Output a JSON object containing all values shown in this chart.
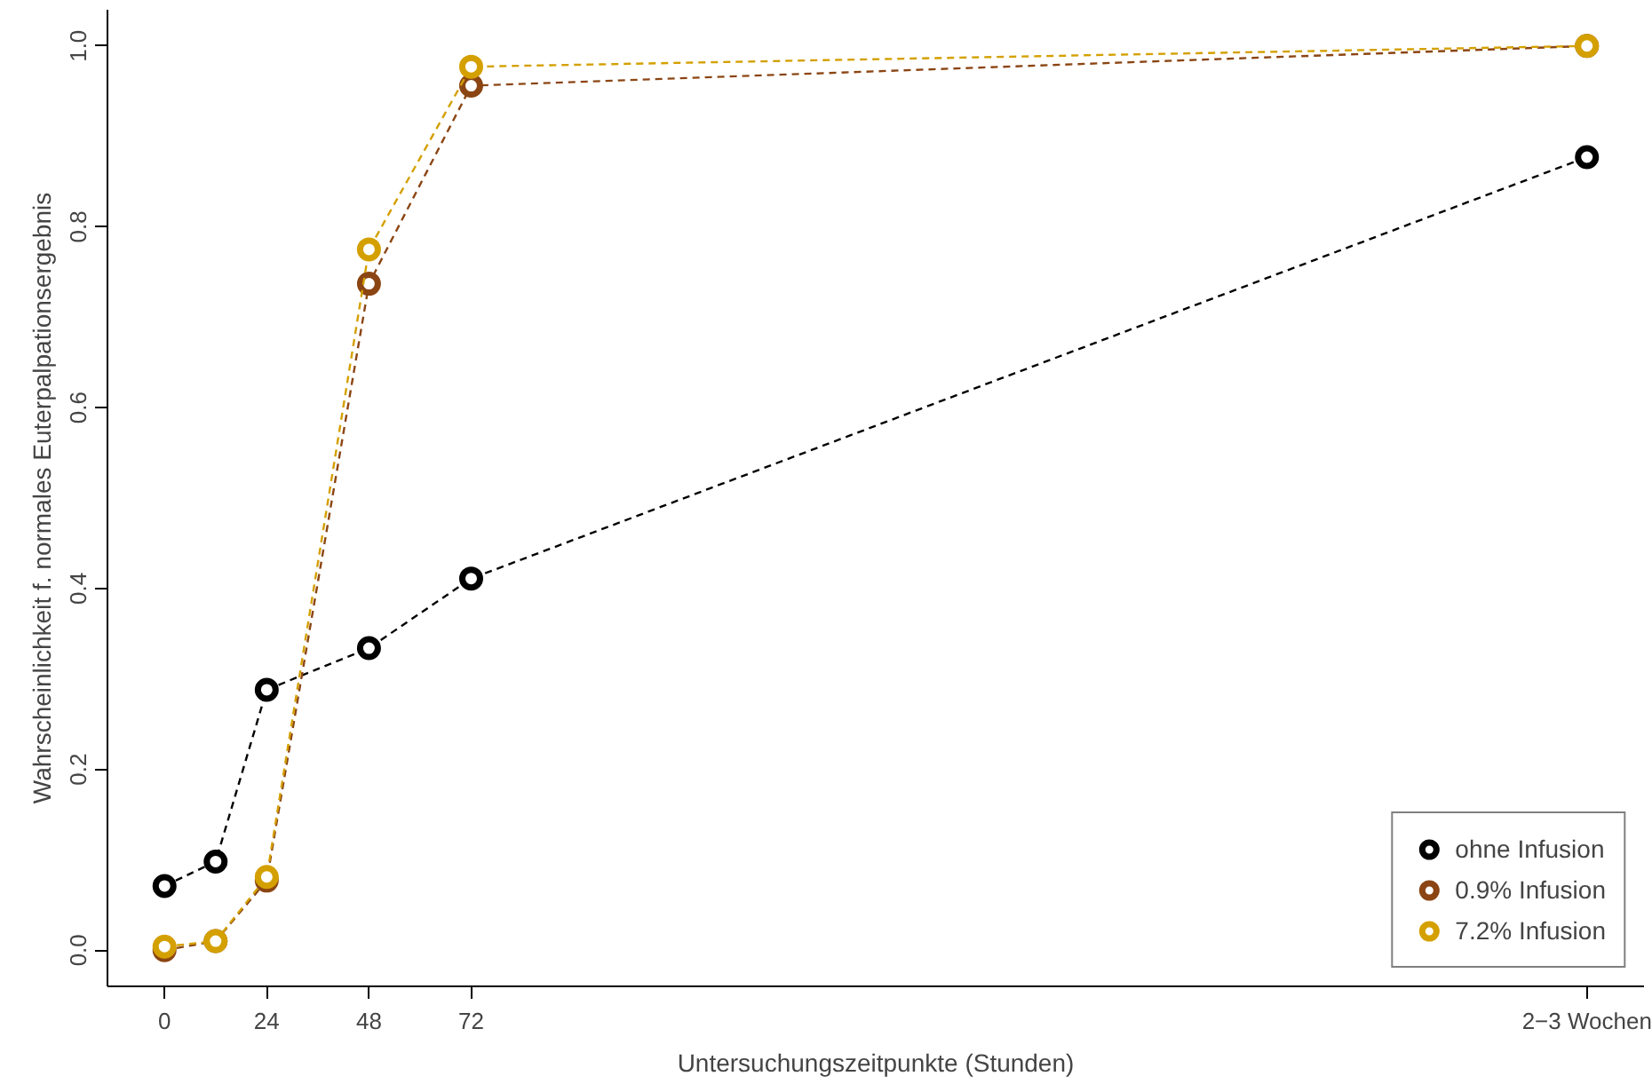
{
  "chart_data": {
    "type": "line",
    "xlabel": "Untersuchungszeitpunkte (Stunden)",
    "ylabel": "Wahrscheinlichkeit f. normales Euterpalpationsergebnis",
    "x": [
      0,
      12,
      24,
      48,
      72,
      334
    ],
    "series": [
      {
        "name": "ohne Infusion",
        "color": "#000000",
        "values": [
          0.071,
          0.098,
          0.288,
          0.334,
          0.411,
          0.877
        ]
      },
      {
        "name": "0.9% Infusion",
        "color": "#8b4513",
        "values": [
          0.0,
          0.01,
          0.077,
          0.737,
          0.956,
          1.0
        ]
      },
      {
        "name": "7.2% Infusion",
        "color": "#d4a000",
        "values": [
          0.004,
          0.01,
          0.081,
          0.775,
          0.977,
          1.0
        ]
      }
    ],
    "xlim": [
      -13.4,
      347.4
    ],
    "ylim": [
      -0.04,
      1.04
    ],
    "xticks": [
      0,
      24,
      48,
      72,
      {
        "value": 334,
        "label": "2−3 Wochen"
      }
    ],
    "yticks": [
      {
        "value": 0,
        "label": "0.0"
      },
      {
        "value": 0.2,
        "label": "0.2"
      },
      {
        "value": 0.4,
        "label": "0.4"
      },
      {
        "value": 0.6,
        "label": "0.6"
      },
      {
        "value": 0.8,
        "label": "0.8"
      },
      {
        "value": 1,
        "label": "1.0"
      }
    ],
    "marker": "circle",
    "line_style": "dashed",
    "grid": false,
    "legend": "bottom right"
  }
}
